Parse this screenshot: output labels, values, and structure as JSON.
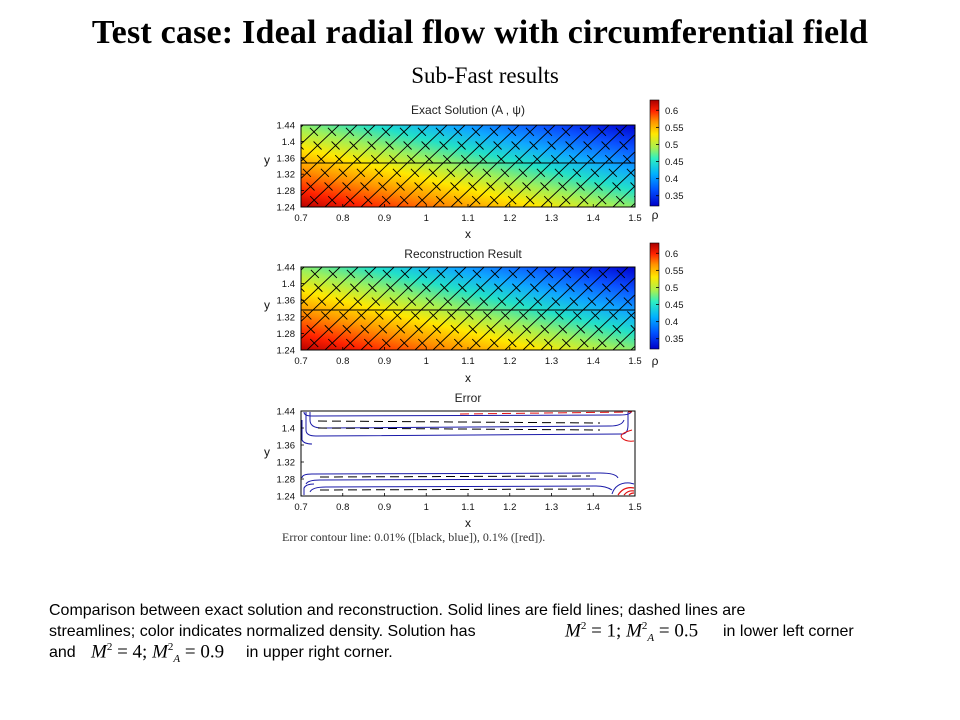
{
  "title": "Test case: Ideal radial flow with circumferential field",
  "subtitle": "Sub-Fast results",
  "panels": [
    {
      "title": "Exact Solution (A , ψ)",
      "x_label": "x",
      "y_label": "y",
      "colorbar_label": "ρ"
    },
    {
      "title": "Reconstruction Result",
      "x_label": "x",
      "y_label": "y",
      "colorbar_label": "ρ"
    },
    {
      "title": "Error",
      "x_label": "x",
      "y_label": "y"
    }
  ],
  "x_ticks": [
    "0.7",
    "0.8",
    "0.9",
    "1",
    "1.1",
    "1.2",
    "1.3",
    "1.4",
    "1.5"
  ],
  "y_ticks": [
    "1.44",
    "1.4",
    "1.36",
    "1.32",
    "1.28",
    "1.24"
  ],
  "colorbar_ticks": [
    "0.6",
    "0.55",
    "0.5",
    "0.45",
    "0.4",
    "0.35"
  ],
  "chart_data": [
    {
      "type": "heatmap",
      "title": "Exact Solution (A , ψ)",
      "xlabel": "x",
      "ylabel": "y",
      "xlim": [
        0.7,
        1.5
      ],
      "ylim": [
        1.24,
        1.44
      ],
      "color_label": "ρ",
      "color_range": [
        0.32,
        0.63
      ],
      "colormap": "jet",
      "overlay": "solid field lines and dashed streamlines"
    },
    {
      "type": "heatmap",
      "title": "Reconstruction Result",
      "xlabel": "x",
      "ylabel": "y",
      "xlim": [
        0.7,
        1.5
      ],
      "ylim": [
        1.24,
        1.44
      ],
      "color_label": "ρ",
      "color_range": [
        0.32,
        0.63
      ],
      "colormap": "jet",
      "overlay": "solid field lines and dashed streamlines"
    },
    {
      "type": "line",
      "title": "Error",
      "xlabel": "x",
      "ylabel": "y",
      "xlim": [
        0.7,
        1.5
      ],
      "ylim": [
        1.24,
        1.44
      ],
      "overlay": "error contour lines"
    }
  ],
  "error_note": "Error contour line: 0.01% ([black, blue]), 0.1% ([red]).",
  "caption": {
    "line1": "Comparison between exact solution and reconstruction. Solid lines are field lines; dashed lines are",
    "line2_a": "streamlines; color indicates normalized density.  Solution has",
    "line2_b": "in lower left corner",
    "line3_a": "and",
    "line3_b": "in upper right corner.",
    "math1": {
      "M": "M",
      "exp": "2",
      "eq": " = 1; ",
      "MA": "M",
      "sub": "A",
      "exp2": "2",
      "eq2": " = 0.5"
    },
    "math2": {
      "M": "M",
      "exp": "2",
      "eq": " = 4; ",
      "MA": "M",
      "sub": "A",
      "exp2": "2",
      "eq2": " = 0.9"
    }
  },
  "colors": {
    "field_line": "#000000",
    "error_blue": "#1a1aa8",
    "error_red": "#e01010"
  }
}
